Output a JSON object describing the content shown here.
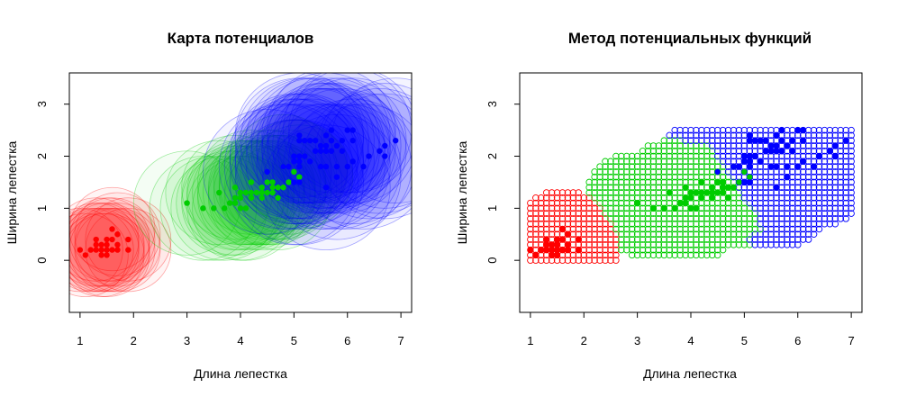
{
  "chart_data": [
    {
      "type": "scatter",
      "title": "Карта потенциалов",
      "xlabel": "Длина лепестка",
      "ylabel": "Ширина лепестка",
      "xlim": [
        0.8,
        7.2
      ],
      "ylim": [
        -1.0,
        3.6
      ],
      "xticks": [
        "1",
        "2",
        "3",
        "4",
        "5",
        "6",
        "7"
      ],
      "yticks": [
        "0",
        "1",
        "2",
        "3"
      ],
      "grid": false,
      "colors": {
        "setosa": "#ff0000",
        "versicolor": "#00cc00",
        "virginica": "#0000ff"
      },
      "potential_radii": {
        "setosa": 0.8,
        "versicolor": 1.0,
        "virginica": 1.2
      },
      "series": [
        {
          "key": "setosa",
          "points": [
            [
              1.0,
              0.2
            ],
            [
              1.1,
              0.1
            ],
            [
              1.2,
              0.2
            ],
            [
              1.3,
              0.2
            ],
            [
              1.3,
              0.3
            ],
            [
              1.3,
              0.4
            ],
            [
              1.4,
              0.1
            ],
            [
              1.4,
              0.2
            ],
            [
              1.4,
              0.3
            ],
            [
              1.5,
              0.1
            ],
            [
              1.5,
              0.2
            ],
            [
              1.5,
              0.3
            ],
            [
              1.5,
              0.4
            ],
            [
              1.6,
              0.2
            ],
            [
              1.6,
              0.4
            ],
            [
              1.6,
              0.6
            ],
            [
              1.7,
              0.2
            ],
            [
              1.7,
              0.3
            ],
            [
              1.7,
              0.5
            ],
            [
              1.9,
              0.2
            ],
            [
              1.9,
              0.4
            ]
          ]
        },
        {
          "key": "versicolor",
          "points": [
            [
              3.0,
              1.1
            ],
            [
              3.3,
              1.0
            ],
            [
              3.5,
              1.0
            ],
            [
              3.6,
              1.3
            ],
            [
              3.7,
              1.0
            ],
            [
              3.8,
              1.1
            ],
            [
              3.9,
              1.1
            ],
            [
              3.9,
              1.2
            ],
            [
              3.9,
              1.4
            ],
            [
              4.0,
              1.0
            ],
            [
              4.0,
              1.2
            ],
            [
              4.0,
              1.3
            ],
            [
              4.1,
              1.0
            ],
            [
              4.1,
              1.3
            ],
            [
              4.2,
              1.2
            ],
            [
              4.2,
              1.3
            ],
            [
              4.2,
              1.5
            ],
            [
              4.3,
              1.3
            ],
            [
              4.4,
              1.2
            ],
            [
              4.4,
              1.3
            ],
            [
              4.4,
              1.4
            ],
            [
              4.5,
              1.3
            ],
            [
              4.5,
              1.5
            ],
            [
              4.6,
              1.3
            ],
            [
              4.6,
              1.4
            ],
            [
              4.6,
              1.5
            ],
            [
              4.7,
              1.2
            ],
            [
              4.7,
              1.4
            ],
            [
              4.8,
              1.4
            ],
            [
              4.8,
              1.8
            ],
            [
              4.9,
              1.5
            ],
            [
              5.0,
              1.7
            ],
            [
              5.1,
              1.6
            ]
          ]
        },
        {
          "key": "virginica",
          "points": [
            [
              4.5,
              1.7
            ],
            [
              4.8,
              1.8
            ],
            [
              4.9,
              1.8
            ],
            [
              5.0,
              1.5
            ],
            [
              5.0,
              1.9
            ],
            [
              5.0,
              2.0
            ],
            [
              5.1,
              1.5
            ],
            [
              5.1,
              1.8
            ],
            [
              5.1,
              1.9
            ],
            [
              5.1,
              2.0
            ],
            [
              5.1,
              2.3
            ],
            [
              5.1,
              2.4
            ],
            [
              5.2,
              2.0
            ],
            [
              5.2,
              2.3
            ],
            [
              5.3,
              1.9
            ],
            [
              5.3,
              2.3
            ],
            [
              5.4,
              2.1
            ],
            [
              5.4,
              2.3
            ],
            [
              5.5,
              1.8
            ],
            [
              5.5,
              2.1
            ],
            [
              5.5,
              2.2
            ],
            [
              5.6,
              1.4
            ],
            [
              5.6,
              1.8
            ],
            [
              5.6,
              2.1
            ],
            [
              5.6,
              2.2
            ],
            [
              5.6,
              2.4
            ],
            [
              5.7,
              2.1
            ],
            [
              5.7,
              2.3
            ],
            [
              5.7,
              2.5
            ],
            [
              5.8,
              1.6
            ],
            [
              5.8,
              1.8
            ],
            [
              5.8,
              2.2
            ],
            [
              5.9,
              2.1
            ],
            [
              5.9,
              2.3
            ],
            [
              6.0,
              1.8
            ],
            [
              6.0,
              2.5
            ],
            [
              6.1,
              1.9
            ],
            [
              6.1,
              2.3
            ],
            [
              6.1,
              2.5
            ],
            [
              6.3,
              1.8
            ],
            [
              6.4,
              2.0
            ],
            [
              6.6,
              2.1
            ],
            [
              6.7,
              2.0
            ],
            [
              6.7,
              2.2
            ],
            [
              6.9,
              2.3
            ]
          ]
        }
      ]
    },
    {
      "type": "scatter",
      "title": "Метод потенциальных функций",
      "xlabel": "Длина лепестка",
      "ylabel": "Ширина лепестка",
      "xlim": [
        0.8,
        7.2
      ],
      "ylim": [
        -1.0,
        3.6
      ],
      "xticks": [
        "1",
        "2",
        "3",
        "4",
        "5",
        "6",
        "7"
      ],
      "yticks": [
        "0",
        "1",
        "2",
        "3"
      ],
      "grid": false,
      "classification_grid": {
        "x_start": 1.0,
        "x_end": 7.0,
        "y_start": 0.0,
        "y_end": 2.5,
        "step": 0.1
      },
      "series_ref": "same training points as first chart",
      "colors": {
        "setosa": "#ff0000",
        "versicolor": "#00cc00",
        "virginica": "#0000ff"
      }
    }
  ]
}
